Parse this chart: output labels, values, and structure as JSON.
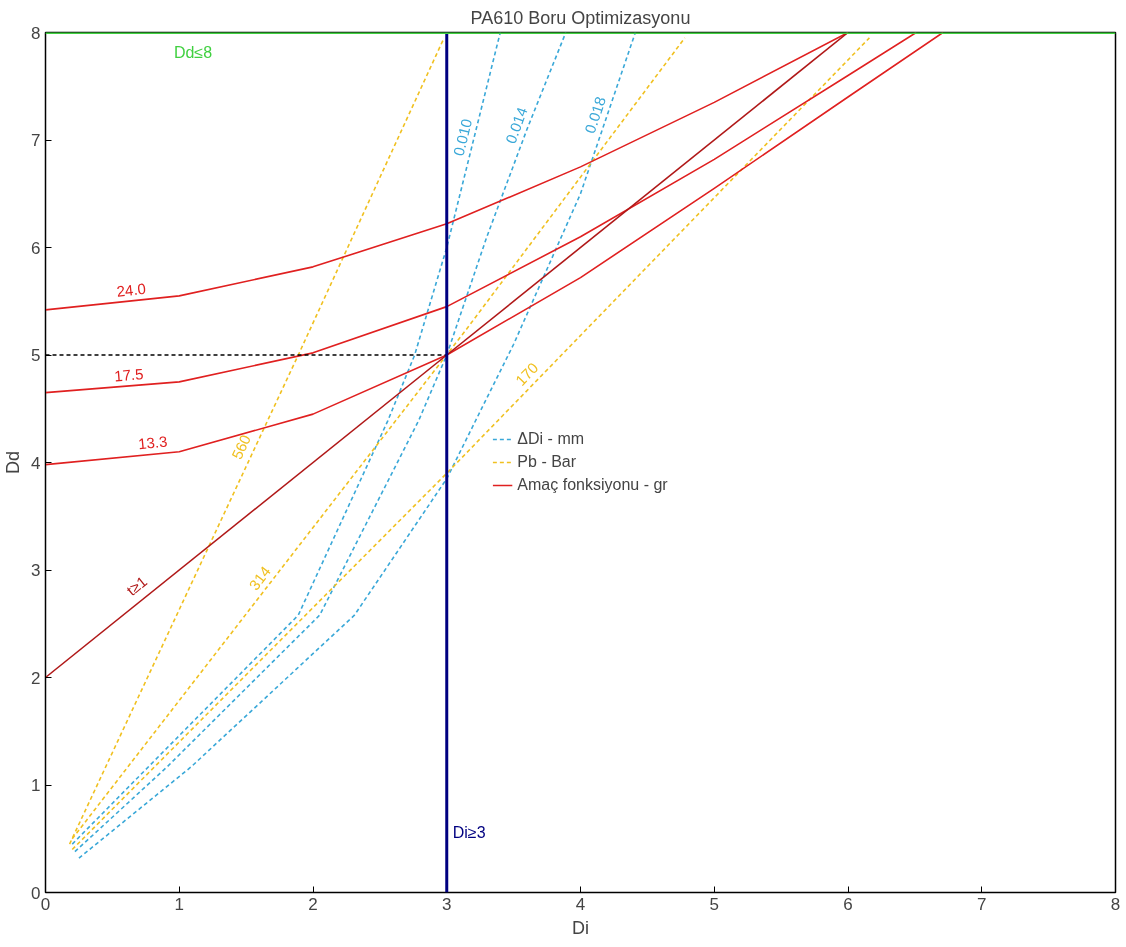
{
  "chart_data": {
    "type": "line",
    "title": "PA610 Boru Optimizasyonu",
    "xlabel": "Di",
    "ylabel": "Dd",
    "xlim": [
      0,
      8
    ],
    "ylim": [
      0,
      8
    ],
    "xticks": [
      0,
      1,
      2,
      3,
      4,
      5,
      6,
      7,
      8
    ],
    "yticks": [
      0,
      1,
      2,
      3,
      4,
      5,
      6,
      7,
      8
    ],
    "grid": false,
    "legend": "center",
    "marker": "none",
    "series": [
      {
        "name": "ΔDi - mm",
        "color": "#3aa8d8",
        "line_style": "dashed",
        "x": [
          0.2,
          0.77,
          1.89,
          2.56,
          2.76,
          3.0,
          3.2,
          3.4
        ],
        "values": [
          0.45,
          1.17,
          2.58,
          4.39,
          5.0,
          6.0,
          7.0,
          8.0
        ]
      },
      {
        "color": "#3aa8d8",
        "line_style": "dashed",
        "x": [
          0.22,
          0.91,
          2.05,
          2.79,
          3.0,
          3.3,
          3.6,
          3.89
        ],
        "values": [
          0.38,
          1.17,
          2.58,
          4.39,
          5.0,
          6.1,
          7.1,
          8.0
        ]
      },
      {
        "color": "#3aa8d8",
        "line_style": "dashed",
        "x": [
          0.25,
          1.09,
          2.31,
          3.0,
          3.5,
          4.0,
          4.41
        ],
        "values": [
          0.32,
          1.17,
          2.58,
          3.85,
          5.1,
          6.5,
          8.0
        ]
      },
      {
        "name": "Pb - Bar",
        "color": "#f0c020",
        "line_style": "dashed",
        "x": [
          0.18,
          1.89,
          2.98
        ],
        "values": [
          0.45,
          5.0,
          7.95
        ]
      },
      {
        "color": "#f0c020",
        "line_style": "dashed",
        "x": [
          0.2,
          3.16,
          4.78
        ],
        "values": [
          0.5,
          5.26,
          7.95
        ]
      },
      {
        "color": "#f0c020",
        "line_style": "dashed",
        "x": [
          0.2,
          3.0,
          6.16
        ],
        "values": [
          0.4,
          3.9,
          7.95
        ]
      },
      {
        "name": "Amaç fonksiyonu - gr",
        "color": "#e02020",
        "line_style": "solid",
        "x": [
          0,
          1,
          2,
          3,
          4,
          5,
          6
        ],
        "values": [
          5.42,
          5.55,
          5.82,
          6.22,
          6.75,
          7.35,
          8.0
        ]
      },
      {
        "color": "#e02020",
        "line_style": "solid",
        "x": [
          0,
          1,
          2,
          3,
          4,
          5,
          6,
          6.51
        ],
        "values": [
          4.65,
          4.75,
          5.02,
          5.45,
          6.1,
          6.82,
          7.6,
          8.0
        ]
      },
      {
        "color": "#e02020",
        "line_style": "solid",
        "x": [
          0,
          1,
          2,
          3,
          4,
          5,
          6,
          6.71
        ],
        "values": [
          3.98,
          4.1,
          4.45,
          5.0,
          5.72,
          6.55,
          7.4,
          8.0
        ]
      },
      {
        "color": "#b01818",
        "line_style": "solid",
        "x": [
          0,
          3,
          6
        ],
        "values": [
          2.0,
          5.0,
          8.0
        ]
      },
      {
        "color": "#000000",
        "line_style": "dashed",
        "x": [
          0,
          3
        ],
        "values": [
          5.0,
          5.0
        ]
      }
    ],
    "ref_lines": [
      {
        "axis": "x",
        "value": 3,
        "label": "Di≥3",
        "color": "#000080"
      },
      {
        "axis": "y",
        "value": 8,
        "label": "Dd≤8",
        "color": "#40d040"
      }
    ],
    "annotations": [
      {
        "text": "0.010",
        "x": 3.2,
        "y": 7.0
      },
      {
        "text": "0.014",
        "x": 3.6,
        "y": 7.1
      },
      {
        "text": "0.018",
        "x": 4.19,
        "y": 7.2
      },
      {
        "text": "560",
        "x": 1.54,
        "y": 4.1
      },
      {
        "text": "314",
        "x": 1.67,
        "y": 2.86
      },
      {
        "text": "170",
        "x": 3.66,
        "y": 4.75
      },
      {
        "text": "24.0",
        "x": 0.65,
        "y": 5.5
      },
      {
        "text": "17.5",
        "x": 0.63,
        "y": 4.71
      },
      {
        "text": "13.3",
        "x": 0.81,
        "y": 4.08
      },
      {
        "text": "t≥1",
        "x": 0.75,
        "y": 2.75
      }
    ]
  }
}
